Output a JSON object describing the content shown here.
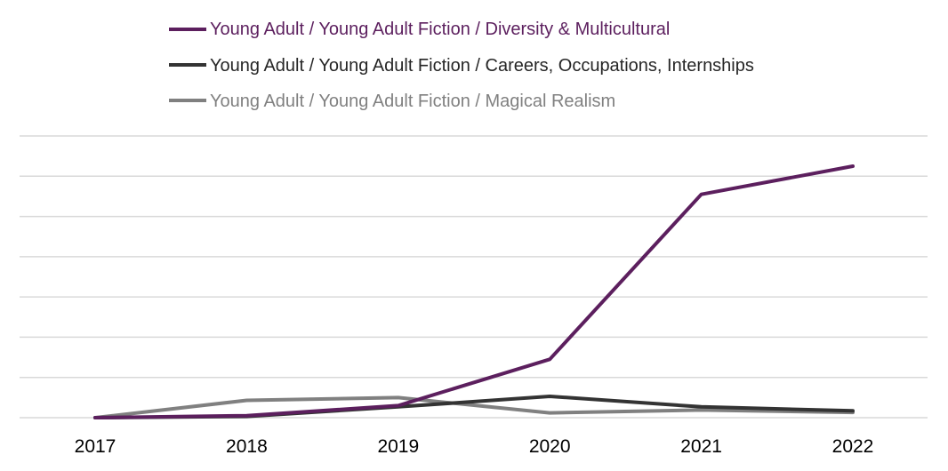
{
  "chart_data": {
    "type": "line",
    "title": "",
    "xlabel": "",
    "ylabel": "",
    "categories": [
      "2017",
      "2018",
      "2019",
      "2020",
      "2021",
      "2022"
    ],
    "ylim": [
      0,
      7
    ],
    "grid": true,
    "legend_position": "top",
    "series": [
      {
        "name": "Young Adult / Young Adult Fiction / Diversity & Multicultural",
        "color": "#5c1f5e",
        "values": [
          0,
          0.05,
          0.3,
          1.45,
          5.55,
          6.25
        ]
      },
      {
        "name": "Young Adult / Young Adult Fiction / Careers, Occupations, Internships",
        "color": "#333333",
        "values": [
          0,
          0.03,
          0.27,
          0.53,
          0.27,
          0.17
        ]
      },
      {
        "name": "Young Adult / Young Adult Fiction / Magical Realism",
        "color": "#808080",
        "values": [
          0,
          0.43,
          0.5,
          0.12,
          0.19,
          0.13
        ]
      }
    ]
  }
}
